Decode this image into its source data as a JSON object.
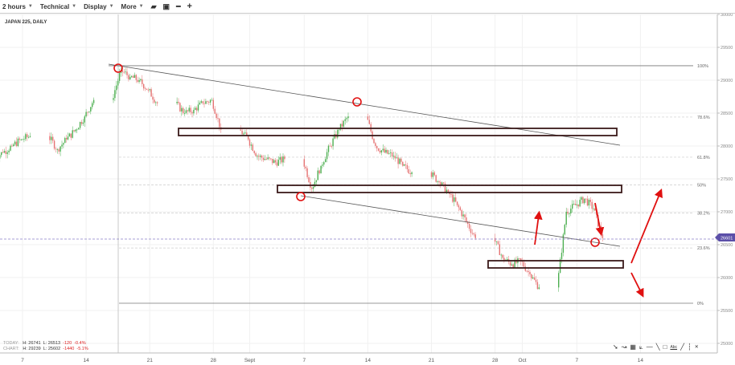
{
  "toolbar": {
    "interval": "2 hours",
    "technical": "Technical",
    "display": "Display",
    "more": "More"
  },
  "chart_title": "JAPAN 225, DAILY",
  "stats": {
    "today": {
      "label": "TODAY:",
      "h": "H: 26741",
      "l": "L: 26513",
      "chg": "-120",
      "pct": "-0.4%"
    },
    "chart": {
      "label": "CHART:",
      "h": "H: 29239",
      "l": "L: 25602",
      "chg": "-1440",
      "pct": "-5.1%"
    }
  },
  "colors": {
    "up": "#4caf50",
    "down": "#e57373",
    "annotation": "#e01010",
    "rect": "#3a1a1a",
    "price_tag": "#5b4fa8"
  },
  "draw_tools": [
    "arrow-icon",
    "path-icon",
    "grid-icon",
    "fan-icon",
    "horizontal-line-icon",
    "trend-line-icon",
    "rectangle-icon",
    "text-icon",
    "pencil-icon",
    "vertical-line-icon",
    "close-icon"
  ],
  "draw_tool_labels": {
    "text": "Abc",
    "close": "✕"
  },
  "chart_data": {
    "type": "candlestick",
    "ylim": [
      25000,
      30000
    ],
    "yticks": [
      30000,
      29500,
      29000,
      28500,
      28000,
      27500,
      27000,
      26500,
      26000,
      25500,
      25000
    ],
    "xtick_labels": [
      {
        "date": "2020-08-07",
        "label": "7"
      },
      {
        "date": "2020-08-14",
        "label": "14"
      },
      {
        "date": "2020-08-21",
        "label": "21"
      },
      {
        "date": "2020-08-28",
        "label": "28"
      },
      {
        "date": "2020-09-01",
        "label": "Sept"
      },
      {
        "date": "2020-09-07",
        "label": "7"
      },
      {
        "date": "2020-09-14",
        "label": "14"
      },
      {
        "date": "2020-09-21",
        "label": "21"
      },
      {
        "date": "2020-09-28",
        "label": "28"
      },
      {
        "date": "2020-10-01",
        "label": "Oct"
      },
      {
        "date": "2020-10-07",
        "label": "7"
      },
      {
        "date": "2020-10-14",
        "label": "14"
      }
    ],
    "current_price": "26601",
    "fib_levels": [
      {
        "label": "100%",
        "price": 29220
      },
      {
        "label": "78.6%",
        "price": 28440
      },
      {
        "label": "61.8%",
        "price": 27830
      },
      {
        "label": "50%",
        "price": 27410
      },
      {
        "label": "38.2%",
        "price": 26980
      },
      {
        "label": "23.6%",
        "price": 26450
      },
      {
        "label": "0%",
        "price": 25610
      }
    ],
    "closes": [
      [
        "2020-08-04",
        27900
      ],
      [
        "2020-08-05",
        28000
      ],
      [
        "2020-08-06",
        28100
      ],
      [
        "2020-08-07",
        28150
      ],
      [
        "2020-08-10",
        27950
      ],
      [
        "2020-08-11",
        28100
      ],
      [
        "2020-08-12",
        28250
      ],
      [
        "2020-08-13",
        28450
      ],
      [
        "2020-08-14",
        28700
      ],
      [
        "2020-08-17",
        29150
      ],
      [
        "2020-08-18",
        29050
      ],
      [
        "2020-08-19",
        29000
      ],
      [
        "2020-08-20",
        28850
      ],
      [
        "2020-08-21",
        28650
      ],
      [
        "2020-08-24",
        28500
      ],
      [
        "2020-08-25",
        28550
      ],
      [
        "2020-08-26",
        28650
      ],
      [
        "2020-08-27",
        28700
      ],
      [
        "2020-08-28",
        28250
      ],
      [
        "2020-08-31",
        28100
      ],
      [
        "2020-09-01",
        27850
      ],
      [
        "2020-09-02",
        27800
      ],
      [
        "2020-09-03",
        27750
      ],
      [
        "2020-09-04",
        27800
      ],
      [
        "2020-09-07",
        27350
      ],
      [
        "2020-09-08",
        27700
      ],
      [
        "2020-09-09",
        28000
      ],
      [
        "2020-09-10",
        28250
      ],
      [
        "2020-09-11",
        28450
      ],
      [
        "2020-09-14",
        28000
      ],
      [
        "2020-09-15",
        27900
      ],
      [
        "2020-09-16",
        27850
      ],
      [
        "2020-09-17",
        27700
      ],
      [
        "2020-09-18",
        27600
      ],
      [
        "2020-09-21",
        27450
      ],
      [
        "2020-09-22",
        27300
      ],
      [
        "2020-09-23",
        27100
      ],
      [
        "2020-09-24",
        26850
      ],
      [
        "2020-09-25",
        26600
      ],
      [
        "2020-09-28",
        26300
      ],
      [
        "2020-09-29",
        26200
      ],
      [
        "2020-09-30",
        26250
      ],
      [
        "2020-10-01",
        26050
      ],
      [
        "2020-10-02",
        25850
      ],
      [
        "2020-10-05",
        27000
      ],
      [
        "2020-10-06",
        27100
      ],
      [
        "2020-10-07",
        27200
      ],
      [
        "2020-10-08",
        27050
      ],
      [
        "2020-10-09",
        26600
      ]
    ]
  }
}
